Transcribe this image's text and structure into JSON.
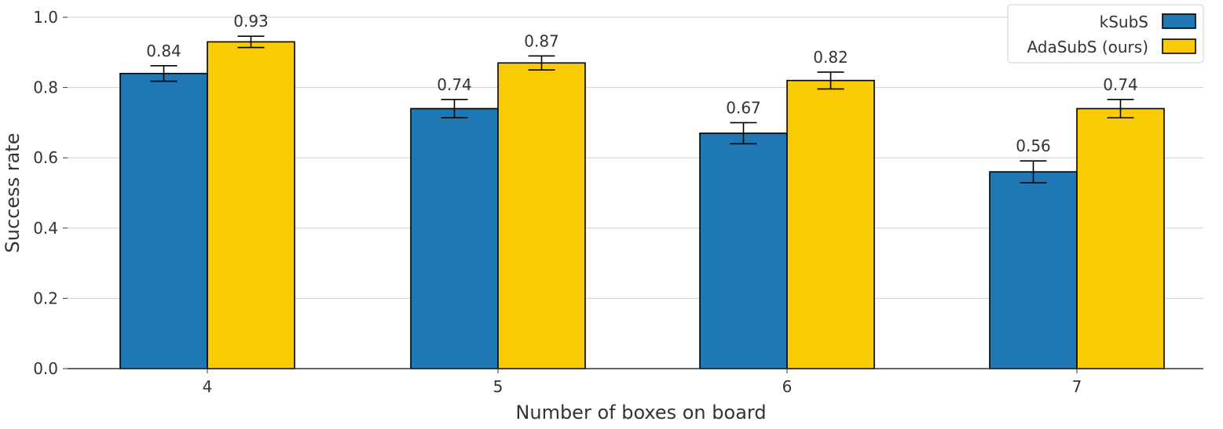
{
  "chart_data": {
    "type": "bar",
    "title": "",
    "xlabel": "Number of boxes on board",
    "ylabel": "Success rate",
    "categories": [
      "4",
      "5",
      "6",
      "7"
    ],
    "ylim": [
      0,
      1.0
    ],
    "yticks": [
      "0.0",
      "0.2",
      "0.4",
      "0.6",
      "0.8",
      "1.0"
    ],
    "grid": true,
    "legend_position": "top-right",
    "series": [
      {
        "name": "kSubS",
        "color": "#1f77b4",
        "values": [
          0.84,
          0.74,
          0.67,
          0.56
        ],
        "labels": [
          "0.84",
          "0.74",
          "0.67",
          "0.56"
        ],
        "error": [
          0.022,
          0.026,
          0.03,
          0.031
        ]
      },
      {
        "name": "AdaSubS (ours)",
        "color": "#f8cb05",
        "values": [
          0.93,
          0.87,
          0.82,
          0.74
        ],
        "labels": [
          "0.93",
          "0.87",
          "0.82",
          "0.74"
        ],
        "error": [
          0.016,
          0.02,
          0.024,
          0.026
        ]
      }
    ]
  }
}
